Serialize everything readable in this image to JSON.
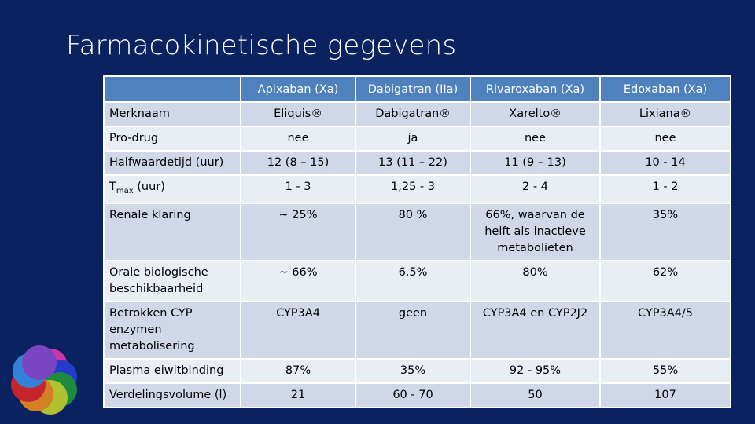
{
  "slide": {
    "title": "Farmacokinetische gegevens"
  },
  "table": {
    "headers": [
      "",
      "Apixaban (Xa)",
      "Dabigatran (IIa)",
      "Rivaroxaban (Xa)",
      "Edoxaban (Xa)"
    ],
    "rows": [
      {
        "label": "Merknaam",
        "cells": [
          "Eliquis®",
          "Dabigatran®",
          "Xarelto®",
          "Lixiana®"
        ]
      },
      {
        "label": "Pro-drug",
        "cells": [
          "nee",
          "ja",
          "nee",
          "nee"
        ]
      },
      {
        "label": "Halfwaardetijd (uur)",
        "cells": [
          "12 (8 – 15)",
          "13 (11 – 22)",
          "11 (9 – 13)",
          "10 - 14"
        ]
      },
      {
        "label_main": "T",
        "label_sub": "max",
        "label_rest": " (uur)",
        "cells": [
          "1 - 3",
          "1,25 - 3",
          "2 - 4",
          "1 - 2"
        ]
      },
      {
        "label": "Renale klaring",
        "cells": [
          "~ 25%",
          "80 %",
          "66%, waarvan de helft als inactieve metabolieten",
          "35%"
        ]
      },
      {
        "label": "Orale biologische beschikbaarheid",
        "cells": [
          "~ 66%",
          "6,5%",
          "80%",
          "62%"
        ]
      },
      {
        "label": "Betrokken CYP enzymen metabolisering",
        "cells": [
          "CYP3A4",
          "geen",
          "CYP3A4 en CYP2J2",
          "CYP3A4/5"
        ]
      },
      {
        "label": "Plasma eiwitbinding",
        "cells": [
          "87%",
          "35%",
          "92 - 95%",
          "55%"
        ]
      },
      {
        "label": "Verdelingsvolume (l)",
        "cells": [
          "21",
          "60 - 70",
          "50",
          "107"
        ]
      }
    ]
  },
  "colors": {
    "background": "#0a2260",
    "header": "#4f81bd",
    "row_odd": "#d0d8e8",
    "row_even": "#e9edf4"
  },
  "logo": {
    "icon": "overlapping-color-circles-logo"
  }
}
